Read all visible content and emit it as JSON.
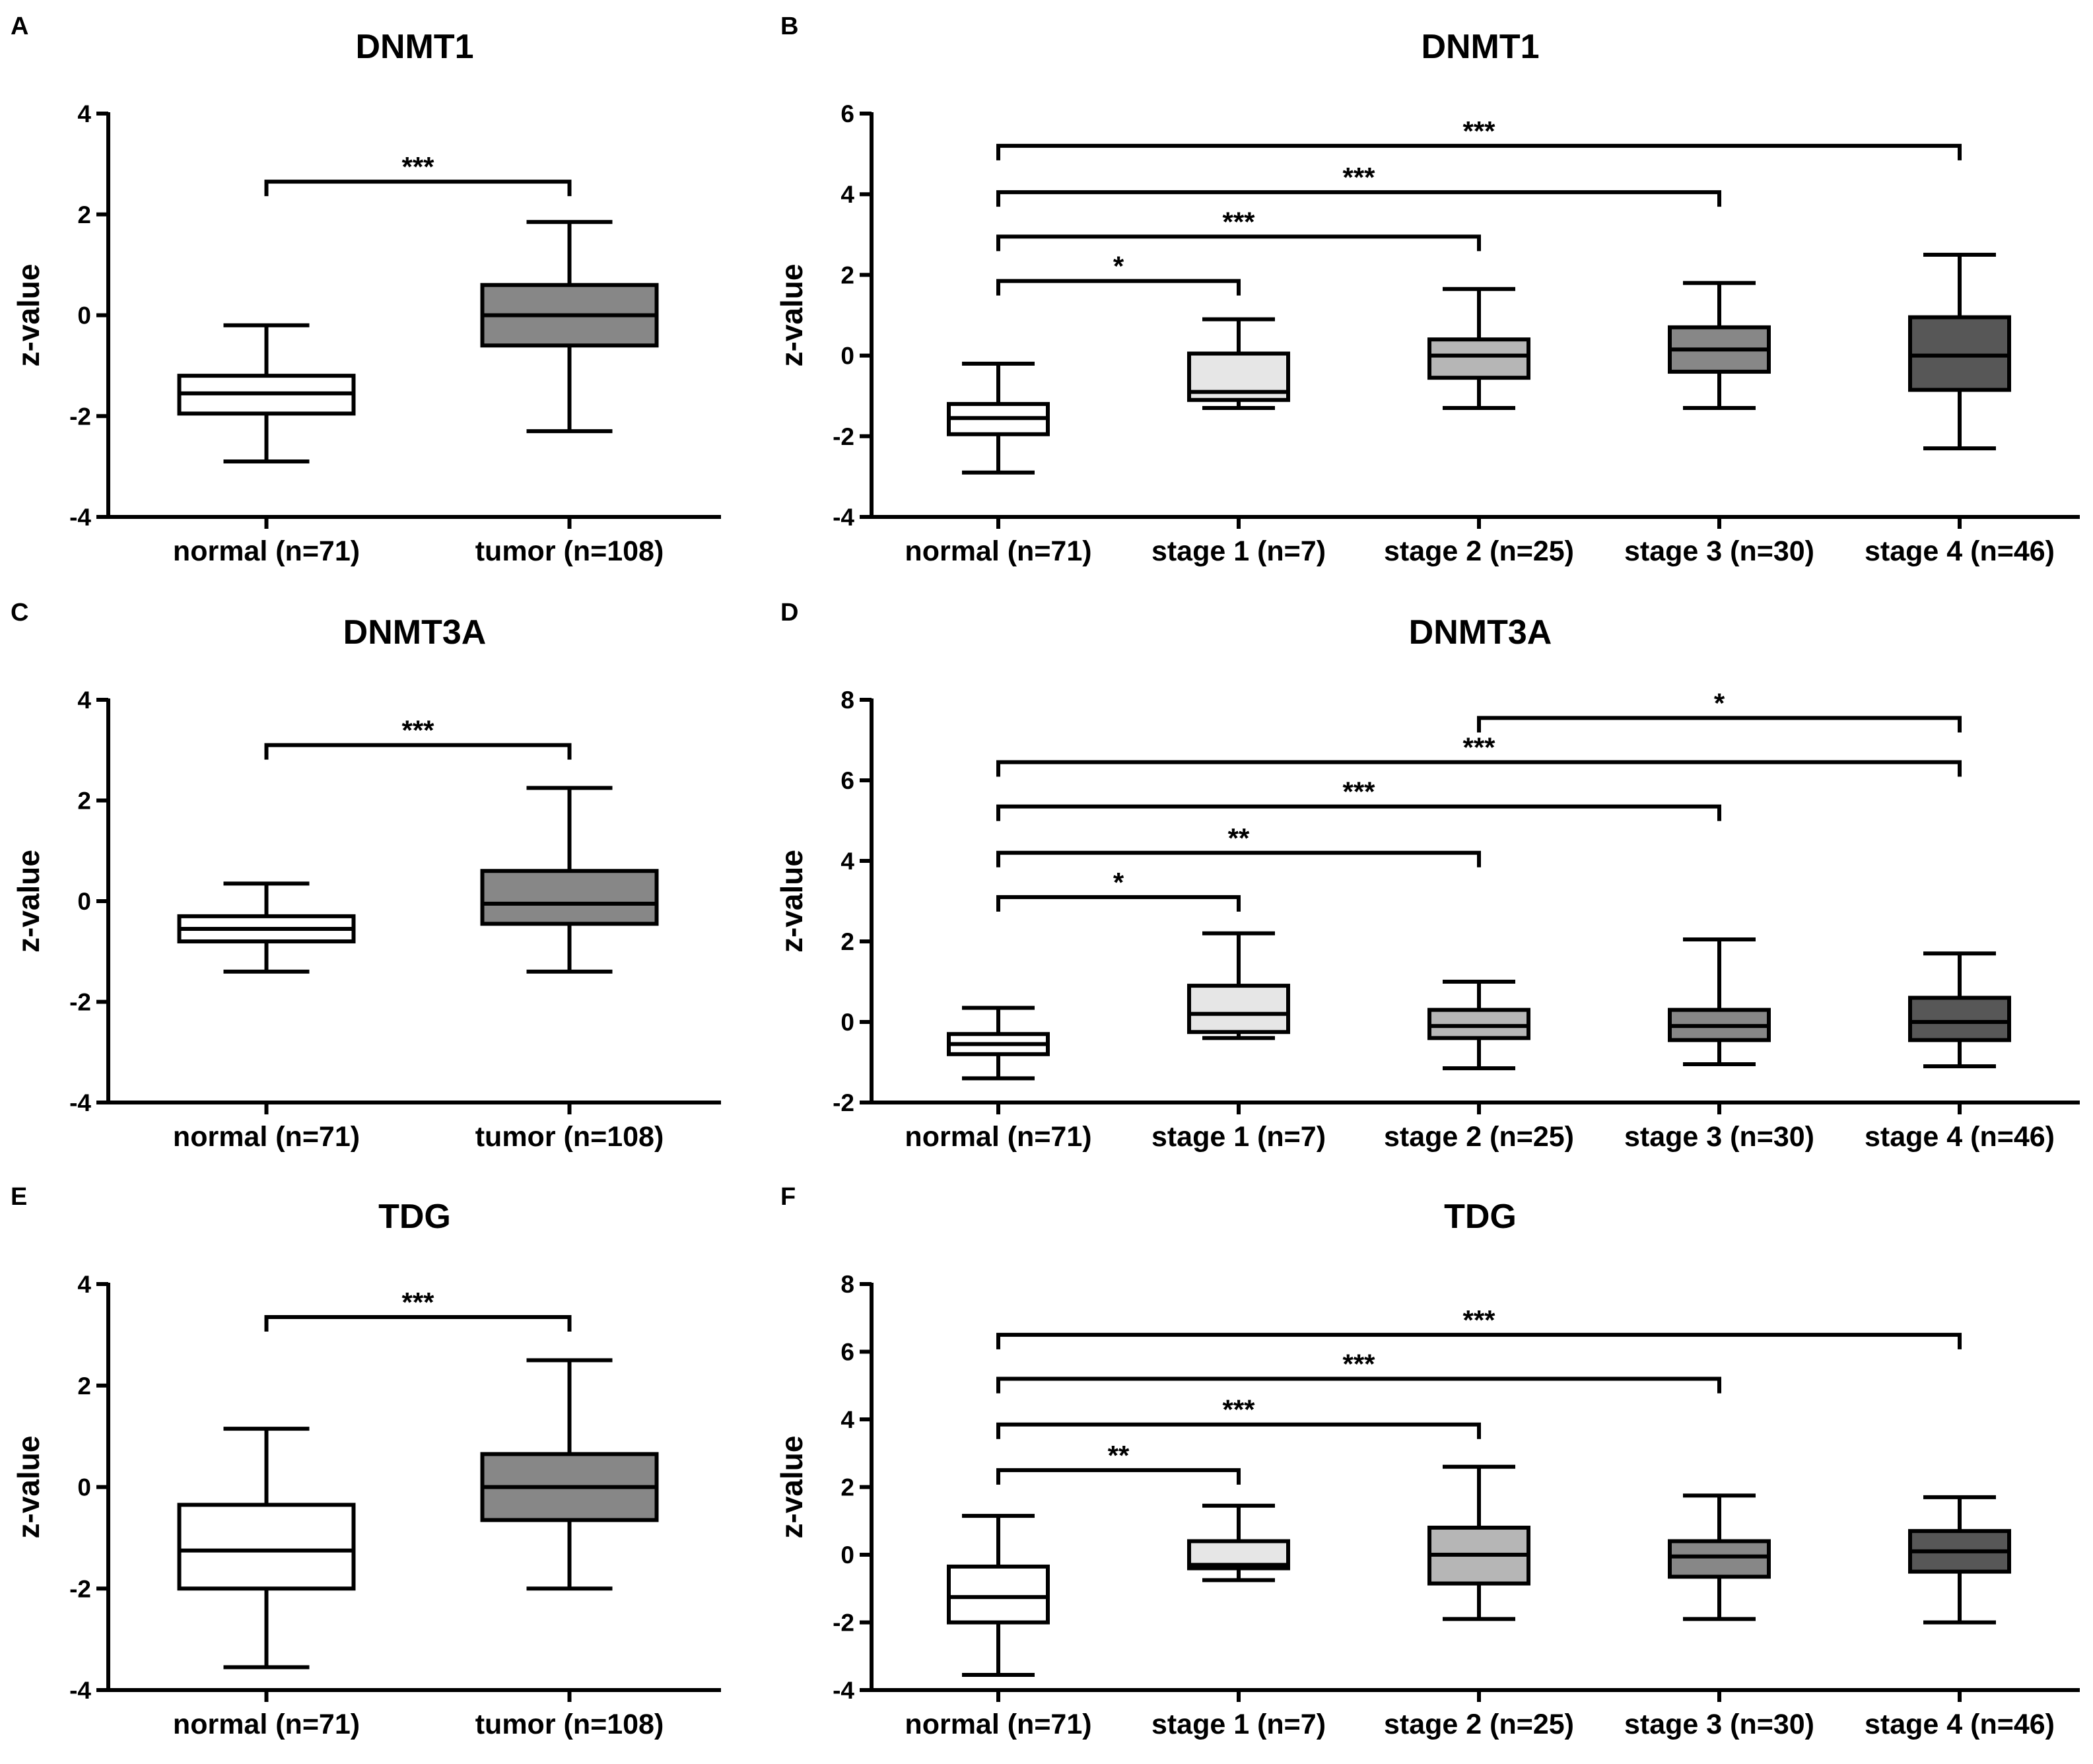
{
  "figure": {
    "colors": {
      "axis": "#000000",
      "text": "#000000",
      "background": "#ffffff"
    }
  },
  "chart_data": [
    {
      "id": "A",
      "panel_label": "A",
      "type": "box",
      "title": "DNMT1",
      "ylabel": "z-value",
      "xlabel": "",
      "ylim": [
        -4,
        4
      ],
      "yticks": [
        -4,
        -2,
        0,
        2,
        4
      ],
      "categories": [
        "normal (n=71)",
        "tumor (n=108)"
      ],
      "boxes": [
        {
          "min": -2.9,
          "q1": -1.95,
          "median": -1.55,
          "q3": -1.2,
          "max": -0.2,
          "color": "#ffffff"
        },
        {
          "min": -2.3,
          "q1": -0.6,
          "median": 0.0,
          "q3": 0.6,
          "max": 1.85,
          "color": "#878787"
        }
      ],
      "significance": [
        {
          "from": 0,
          "to": 1,
          "y": 2.65,
          "label": "***"
        }
      ]
    },
    {
      "id": "B",
      "panel_label": "B",
      "type": "box",
      "title": "DNMT1",
      "ylabel": "z-value",
      "xlabel": "",
      "ylim": [
        -4,
        6
      ],
      "yticks": [
        -4,
        -2,
        0,
        2,
        4,
        6
      ],
      "categories": [
        "normal (n=71)",
        "stage 1 (n=7)",
        "stage 2 (n=25)",
        "stage 3 (n=30)",
        "stage 4 (n=46)"
      ],
      "boxes": [
        {
          "min": -2.9,
          "q1": -1.95,
          "median": -1.55,
          "q3": -1.2,
          "max": -0.2,
          "color": "#ffffff"
        },
        {
          "min": -1.3,
          "q1": -1.1,
          "median": -0.9,
          "q3": 0.05,
          "max": 0.9,
          "color": "#e6e6e6"
        },
        {
          "min": -1.3,
          "q1": -0.55,
          "median": 0.0,
          "q3": 0.4,
          "max": 1.65,
          "color": "#b6b6b6"
        },
        {
          "min": -1.3,
          "q1": -0.4,
          "median": 0.15,
          "q3": 0.7,
          "max": 1.8,
          "color": "#878787"
        },
        {
          "min": -2.3,
          "q1": -0.85,
          "median": 0.0,
          "q3": 0.95,
          "max": 2.5,
          "color": "#575757"
        }
      ],
      "significance": [
        {
          "from": 0,
          "to": 1,
          "y": 1.85,
          "label": "*"
        },
        {
          "from": 0,
          "to": 2,
          "y": 2.95,
          "label": "***"
        },
        {
          "from": 0,
          "to": 3,
          "y": 4.05,
          "label": "***"
        },
        {
          "from": 0,
          "to": 4,
          "y": 5.2,
          "label": "***"
        }
      ]
    },
    {
      "id": "C",
      "panel_label": "C",
      "type": "box",
      "title": "DNMT3A",
      "ylabel": "z-value",
      "xlabel": "",
      "ylim": [
        -4,
        4
      ],
      "yticks": [
        -4,
        -2,
        0,
        2,
        4
      ],
      "categories": [
        "normal (n=71)",
        "tumor (n=108)"
      ],
      "boxes": [
        {
          "min": -1.4,
          "q1": -0.8,
          "median": -0.55,
          "q3": -0.3,
          "max": 0.35,
          "color": "#ffffff"
        },
        {
          "min": -1.4,
          "q1": -0.45,
          "median": -0.05,
          "q3": 0.6,
          "max": 2.25,
          "color": "#878787"
        }
      ],
      "significance": [
        {
          "from": 0,
          "to": 1,
          "y": 3.1,
          "label": "***"
        }
      ]
    },
    {
      "id": "D",
      "panel_label": "D",
      "type": "box",
      "title": "DNMT3A",
      "ylabel": "z-value",
      "xlabel": "",
      "ylim": [
        -2,
        8
      ],
      "yticks": [
        -2,
        0,
        2,
        4,
        6,
        8
      ],
      "categories": [
        "normal (n=71)",
        "stage 1 (n=7)",
        "stage 2 (n=25)",
        "stage 3 (n=30)",
        "stage 4 (n=46)"
      ],
      "boxes": [
        {
          "min": -1.4,
          "q1": -0.8,
          "median": -0.55,
          "q3": -0.3,
          "max": 0.35,
          "color": "#ffffff"
        },
        {
          "min": -0.4,
          "q1": -0.25,
          "median": 0.2,
          "q3": 0.9,
          "max": 2.2,
          "color": "#e6e6e6"
        },
        {
          "min": -1.15,
          "q1": -0.4,
          "median": -0.1,
          "q3": 0.3,
          "max": 1.0,
          "color": "#b6b6b6"
        },
        {
          "min": -1.05,
          "q1": -0.45,
          "median": -0.1,
          "q3": 0.3,
          "max": 2.05,
          "color": "#878787"
        },
        {
          "min": -1.1,
          "q1": -0.45,
          "median": 0.0,
          "q3": 0.6,
          "max": 1.7,
          "color": "#575757"
        }
      ],
      "significance": [
        {
          "from": 0,
          "to": 1,
          "y": 3.1,
          "label": "*"
        },
        {
          "from": 0,
          "to": 2,
          "y": 4.2,
          "label": "**"
        },
        {
          "from": 0,
          "to": 3,
          "y": 5.35,
          "label": "***"
        },
        {
          "from": 0,
          "to": 4,
          "y": 6.45,
          "label": "***"
        },
        {
          "from": 2,
          "to": 4,
          "y": 7.55,
          "label": "*"
        }
      ]
    },
    {
      "id": "E",
      "panel_label": "E",
      "type": "box",
      "title": "TDG",
      "ylabel": "z-value",
      "xlabel": "",
      "ylim": [
        -4,
        4
      ],
      "yticks": [
        -4,
        -2,
        0,
        2,
        4
      ],
      "categories": [
        "normal (n=71)",
        "tumor (n=108)"
      ],
      "boxes": [
        {
          "min": -3.55,
          "q1": -2.0,
          "median": -1.25,
          "q3": -0.35,
          "max": 1.15,
          "color": "#ffffff"
        },
        {
          "min": -2.0,
          "q1": -0.65,
          "median": 0.0,
          "q3": 0.65,
          "max": 2.5,
          "color": "#878787"
        }
      ],
      "significance": [
        {
          "from": 0,
          "to": 1,
          "y": 3.35,
          "label": "***"
        }
      ]
    },
    {
      "id": "F",
      "panel_label": "F",
      "type": "box",
      "title": "TDG",
      "ylabel": "z-value",
      "xlabel": "",
      "ylim": [
        -4,
        8
      ],
      "yticks": [
        -4,
        -2,
        0,
        2,
        4,
        6,
        8
      ],
      "categories": [
        "normal (n=71)",
        "stage 1 (n=7)",
        "stage 2 (n=25)",
        "stage 3 (n=30)",
        "stage 4 (n=46)"
      ],
      "boxes": [
        {
          "min": -3.55,
          "q1": -2.0,
          "median": -1.25,
          "q3": -0.35,
          "max": 1.15,
          "color": "#ffffff"
        },
        {
          "min": -0.75,
          "q1": -0.4,
          "median": -0.3,
          "q3": 0.4,
          "max": 1.45,
          "color": "#e6e6e6"
        },
        {
          "min": -1.9,
          "q1": -0.85,
          "median": 0.0,
          "q3": 0.8,
          "max": 2.6,
          "color": "#b6b6b6"
        },
        {
          "min": -1.9,
          "q1": -0.65,
          "median": -0.05,
          "q3": 0.4,
          "max": 1.75,
          "color": "#878787"
        },
        {
          "min": -2.0,
          "q1": -0.5,
          "median": 0.1,
          "q3": 0.7,
          "max": 1.7,
          "color": "#575757"
        }
      ],
      "significance": [
        {
          "from": 0,
          "to": 1,
          "y": 2.5,
          "label": "**"
        },
        {
          "from": 0,
          "to": 2,
          "y": 3.85,
          "label": "***"
        },
        {
          "from": 0,
          "to": 3,
          "y": 5.2,
          "label": "***"
        },
        {
          "from": 0,
          "to": 4,
          "y": 6.5,
          "label": "***"
        }
      ]
    }
  ]
}
